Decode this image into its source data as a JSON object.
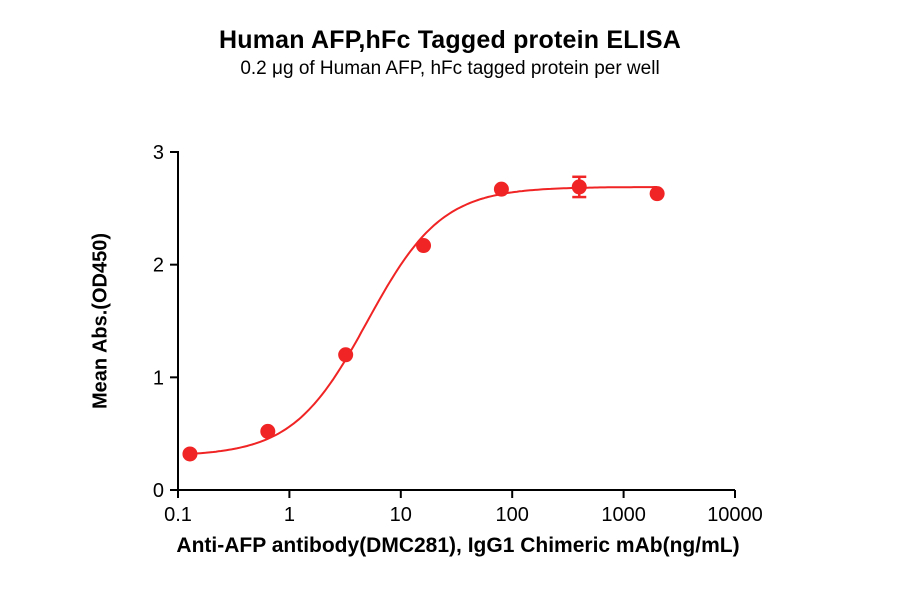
{
  "chart_data": {
    "type": "scatter",
    "title": "Human AFP,hFc Tagged protein ELISA",
    "subtitle": "0.2 μg of Human AFP, hFc tagged protein per well",
    "xlabel": "Anti-AFP antibody(DMC281), IgG1 Chimeric mAb(ng/mL)",
    "ylabel": "Mean Abs.(OD450)",
    "x_scale": "log",
    "xlim": [
      0.1,
      10000
    ],
    "ylim": [
      0,
      3
    ],
    "x_ticks": [
      0.1,
      1,
      10,
      100,
      1000,
      10000
    ],
    "x_tick_labels": [
      "0.1",
      "1",
      "10",
      "100",
      "1000",
      "10000"
    ],
    "y_ticks": [
      0,
      1,
      2,
      3
    ],
    "y_tick_labels": [
      "0",
      "1",
      "2",
      "3"
    ],
    "grid": false,
    "legend": "none",
    "series": [
      {
        "color": "#F02424",
        "points": [
          {
            "x": 0.128,
            "y": 0.32
          },
          {
            "x": 0.64,
            "y": 0.52
          },
          {
            "x": 3.2,
            "y": 1.2
          },
          {
            "x": 16,
            "y": 2.17
          },
          {
            "x": 80,
            "y": 2.67
          },
          {
            "x": 400,
            "y": 2.69,
            "yerr": 0.09
          },
          {
            "x": 2000,
            "y": 2.63
          }
        ],
        "fit_4pl": {
          "bottom": 0.3,
          "top": 2.69,
          "ec50": 5.0,
          "hill": 1.3,
          "x_start": 0.128,
          "x_end": 2000
        }
      }
    ]
  }
}
